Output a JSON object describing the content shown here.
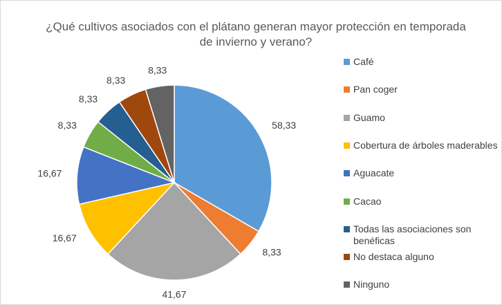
{
  "chart_data": {
    "type": "pie",
    "title": "¿Qué cultivos asociados con el plátano generan mayor protección en temporada de invierno y verano?",
    "categories": [
      "Café",
      "Pan coger",
      "Guamo",
      "Cobertura de árboles maderables",
      "Aguacate",
      "Cacao",
      "Todas las asociaciones son benéficas",
      "No destaca alguno",
      "Ninguno"
    ],
    "values": [
      58.33,
      8.33,
      41.67,
      16.67,
      16.67,
      8.33,
      8.33,
      8.33,
      8.33
    ],
    "value_labels": [
      "58,33",
      "8,33",
      "41,67",
      "16,67",
      "16,67",
      "8,33",
      "8,33",
      "8,33",
      "8,33"
    ],
    "colors": [
      "#5b9bd5",
      "#ed7d31",
      "#a5a5a5",
      "#ffc000",
      "#4472c4",
      "#70ad47",
      "#255e91",
      "#9e480e",
      "#636363"
    ],
    "legend": "right"
  }
}
